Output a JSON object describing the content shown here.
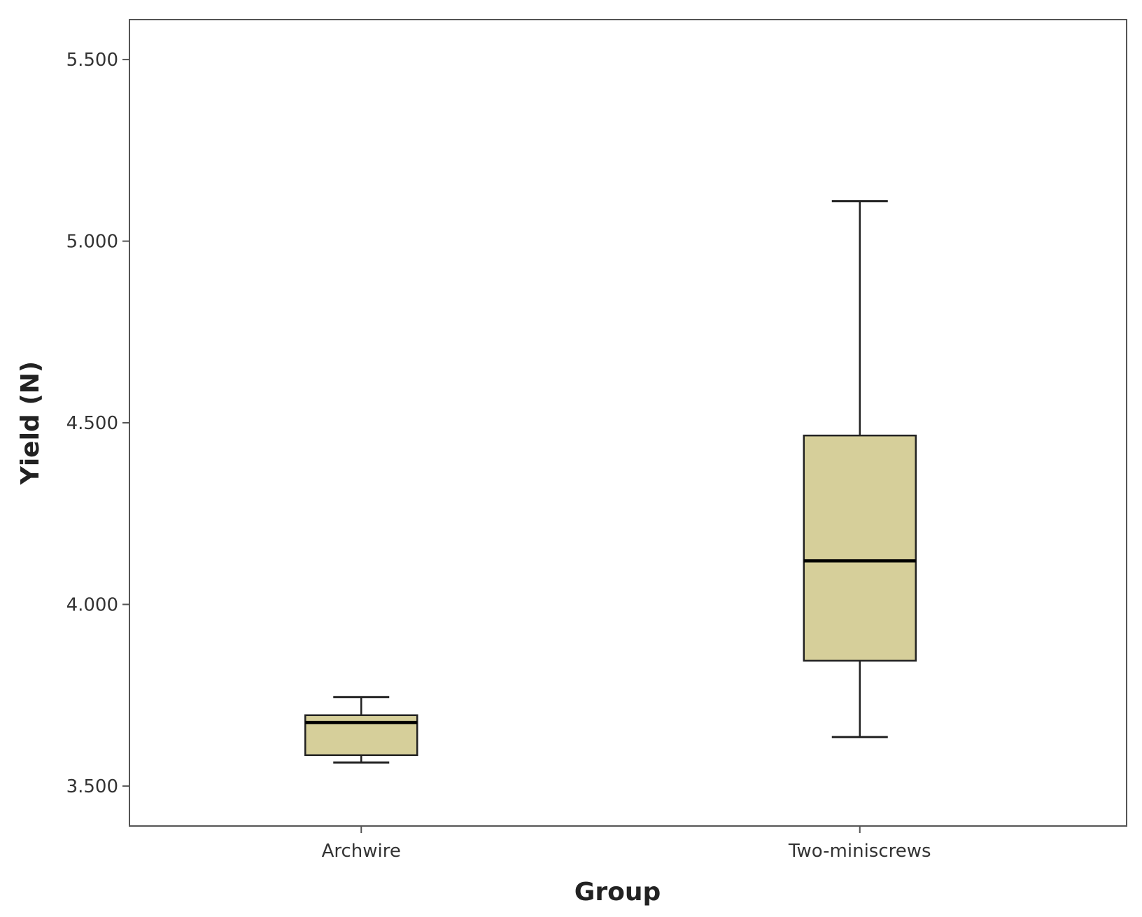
{
  "colors": {
    "box_fill": "#d6cf9a",
    "stroke": "#222222",
    "frame": "#555555",
    "text": "#333333"
  },
  "chart_data": {
    "type": "boxplot",
    "title": "",
    "xlabel": "Group",
    "ylabel": "Yield (N)",
    "ylim": [
      3.39,
      5.61
    ],
    "yticks": [
      3.5,
      4.0,
      4.5,
      5.0,
      5.5
    ],
    "ytick_labels": [
      "3.500",
      "4.000",
      "4.500",
      "5.000",
      "5.500"
    ],
    "grid": false,
    "legend": "none",
    "categories": [
      "Archwire",
      "Two-miniscrews"
    ],
    "boxes": [
      {
        "category": "Archwire",
        "whisker_low": 3.565,
        "q1": 3.585,
        "median": 3.675,
        "q3": 3.695,
        "whisker_high": 3.745
      },
      {
        "category": "Two-miniscrews",
        "whisker_low": 3.635,
        "q1": 3.845,
        "median": 4.12,
        "q3": 4.465,
        "whisker_high": 5.11
      }
    ]
  }
}
